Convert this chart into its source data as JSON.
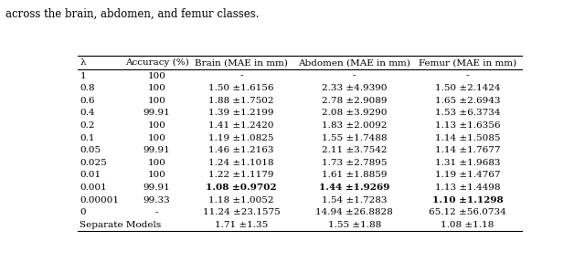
{
  "caption_text": "across the brain, abdomen, and femur classes.",
  "headers": [
    "λ",
    "Accuracy (%)",
    "Brain (MAE in mm)",
    "Abdomen (MAE in mm)",
    "Femur (MAE in mm)"
  ],
  "rows": [
    [
      "1",
      "100",
      "-",
      "-",
      "-"
    ],
    [
      "0.8",
      "100",
      "1.50 ±1.6156",
      "2.33 ±4.9390",
      "1.50 ±2.1424"
    ],
    [
      "0.6",
      "100",
      "1.88 ±1.7502",
      "2.78 ±2.9089",
      "1.65 ±2.6943"
    ],
    [
      "0.4",
      "99.91",
      "1.39 ±1.2199",
      "2.08 ±3.9290",
      "1.53 ±6.3734"
    ],
    [
      "0.2",
      "100",
      "1.41 ±1.2420",
      "1.83 ±2.0092",
      "1.13 ±1.6356"
    ],
    [
      "0.1",
      "100",
      "1.19 ±1.0825",
      "1.55 ±1.7488",
      "1.14 ±1.5085"
    ],
    [
      "0.05",
      "99.91",
      "1.46 ±1.2163",
      "2.11 ±3.7542",
      "1.14 ±1.7677"
    ],
    [
      "0.025",
      "100",
      "1.24 ±1.1018",
      "1.73 ±2.7895",
      "1.31 ±1.9683"
    ],
    [
      "0.01",
      "100",
      "1.22 ±1.1179",
      "1.61 ±1.8859",
      "1.19 ±1.4767"
    ],
    [
      "0.001",
      "99.91",
      "1.08 ±0.9702",
      "1.44 ±1.9269",
      "1.13 ±1.4498"
    ],
    [
      "0.00001",
      "99.33",
      "1.18 ±1.0052",
      "1.54 ±1.7283",
      "1.10 ±1.1298"
    ],
    [
      "0",
      "-",
      "11.24 ±23.1575",
      "14.94 ±26.8828",
      "65.12 ±56.0734"
    ],
    [
      "Separate Models",
      "",
      "1.71 ±1.35",
      "1.55 ±1.88",
      "1.08 ±1.18"
    ]
  ],
  "bold_cells": {
    "9": [
      2,
      3
    ],
    "10": [
      4
    ]
  },
  "figsize": [
    6.4,
    2.87
  ],
  "dpi": 100,
  "font_size": 7.5,
  "header_font_size": 7.5,
  "caption_font_size": 8.5
}
